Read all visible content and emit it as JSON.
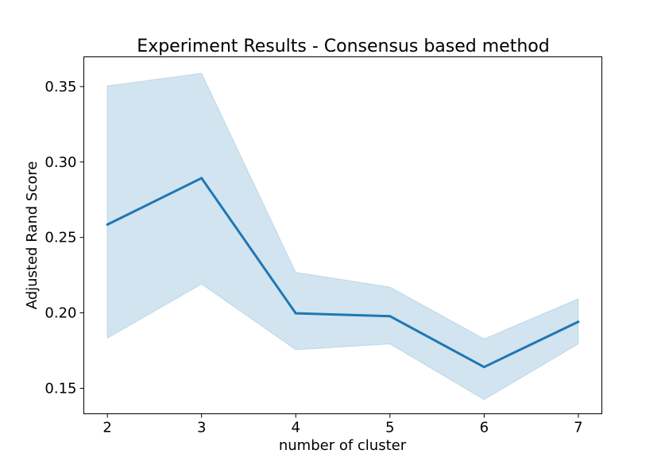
{
  "chart_data": {
    "type": "line",
    "title": "Experiment Results - Consensus based method",
    "xlabel": "number of cluster",
    "ylabel": "Adjusted Rand Score",
    "x": [
      2,
      3,
      4,
      5,
      6,
      7
    ],
    "series": [
      {
        "values": [
          0.2585,
          0.2893,
          0.1997,
          0.1978,
          0.1641,
          0.1941
        ],
        "ci_lower": [
          0.1832,
          0.2191,
          0.1756,
          0.1794,
          0.1425,
          0.1794
        ],
        "ci_upper": [
          0.3504,
          0.3588,
          0.2268,
          0.2171,
          0.1827,
          0.2093
        ],
        "color": "#1f77b4",
        "band_color": "#1f77b4"
      }
    ],
    "xticks": [
      2,
      3,
      4,
      5,
      6,
      7
    ],
    "xtick_labels": [
      "2",
      "3",
      "4",
      "5",
      "6",
      "7"
    ],
    "yticks": [
      0.15,
      0.2,
      0.25,
      0.3,
      0.35
    ],
    "ytick_labels": [
      "0.15",
      "0.20",
      "0.25",
      "0.30",
      "0.35"
    ],
    "xlim": [
      1.75,
      7.25
    ],
    "ylim": [
      0.1331,
      0.3697
    ],
    "grid": false,
    "legend": "none"
  }
}
